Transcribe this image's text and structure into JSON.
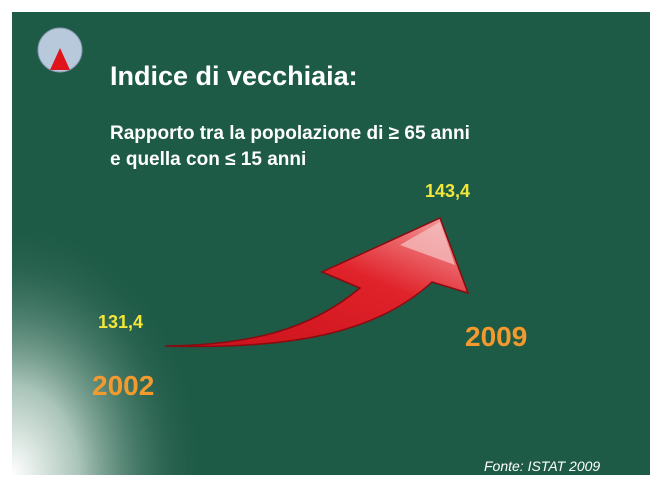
{
  "slide": {
    "title": "Indice di vecchiaia:",
    "subtitle": [
      "Rapporto tra la popolazione di ≥ 65 anni",
      "e quella con ≤ 15 anni"
    ],
    "start": {
      "value": "131,4",
      "year": "2002"
    },
    "end": {
      "value": "143,4",
      "year": "2009"
    },
    "source": "Fonte: ISTAT 2009"
  }
}
